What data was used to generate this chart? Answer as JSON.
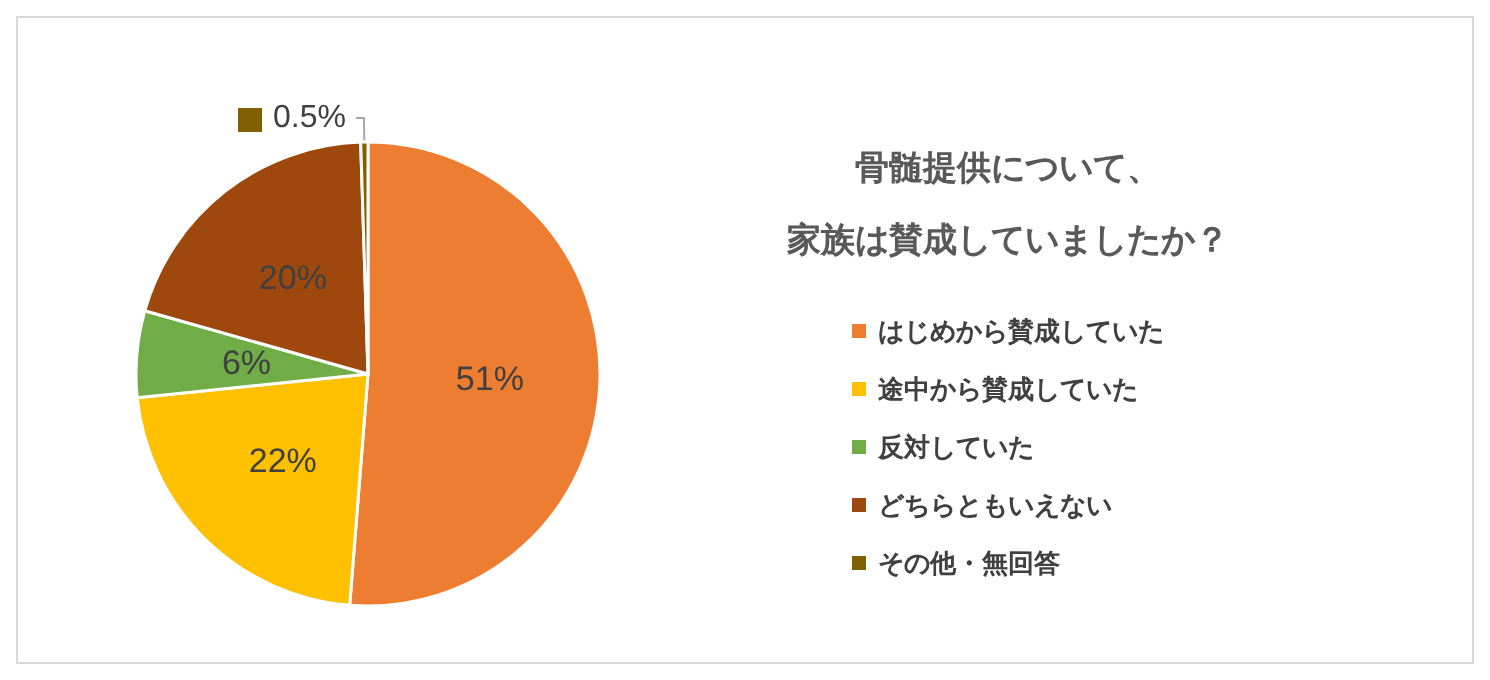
{
  "chart_data": {
    "type": "pie",
    "title": "骨髄提供について、家族は賛成していましたか？",
    "categories": [
      "はじめから賛成していた",
      "途中から賛成していた",
      "反対していた",
      "どちらともいえない",
      "その他・無回答"
    ],
    "values": [
      51,
      22,
      6,
      20,
      0.5
    ],
    "colors": [
      "#ed7d31",
      "#ffc000",
      "#70ad47",
      "#9e480e",
      "#806000"
    ],
    "value_labels": [
      "51%",
      "22%",
      "6%",
      "20%",
      "0.5%"
    ],
    "legend": "right"
  }
}
